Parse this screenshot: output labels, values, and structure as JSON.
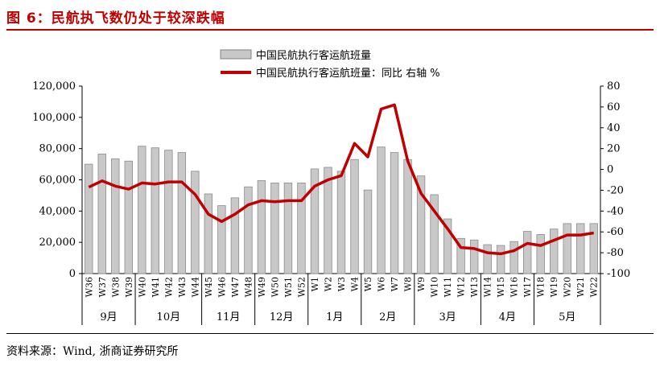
{
  "title": "图 6：民航执飞数仍处于较深跌幅",
  "source": "资料来源：Wind, 浙商证券研究所",
  "chart_data": {
    "type": "bar",
    "categories": [
      "W36",
      "W37",
      "W38",
      "W39",
      "W40",
      "W41",
      "W42",
      "W43",
      "W44",
      "W45",
      "W46",
      "W47",
      "W48",
      "W49",
      "W50",
      "W51",
      "W52",
      "W1",
      "W2",
      "W3",
      "W4",
      "W5",
      "W6",
      "W7",
      "W8",
      "W9",
      "W10",
      "W11",
      "W12",
      "W13",
      "W14",
      "W15",
      "W16",
      "W17",
      "W18",
      "W19",
      "W20",
      "W21",
      "W22"
    ],
    "months": [
      {
        "label": "9月",
        "start": 0,
        "end": 3
      },
      {
        "label": "10月",
        "start": 4,
        "end": 8
      },
      {
        "label": "11月",
        "start": 9,
        "end": 12
      },
      {
        "label": "12月",
        "start": 13,
        "end": 16
      },
      {
        "label": "1月",
        "start": 17,
        "end": 20
      },
      {
        "label": "2月",
        "start": 21,
        "end": 24
      },
      {
        "label": "3月",
        "start": 25,
        "end": 29
      },
      {
        "label": "4月",
        "start": 30,
        "end": 33
      },
      {
        "label": "5月",
        "start": 34,
        "end": 38
      }
    ],
    "series": [
      {
        "name": "中国民航执行客运航班量",
        "type": "bar",
        "axis": "left",
        "color": "#c8c8c8",
        "values": [
          70000,
          76500,
          73500,
          72000,
          81500,
          80500,
          79000,
          77500,
          65500,
          51000,
          43500,
          48500,
          55500,
          59500,
          58000,
          58000,
          58000,
          67000,
          68000,
          65500,
          73000,
          53500,
          81000,
          77500,
          73000,
          62500,
          50500,
          35000,
          22500,
          21500,
          18500,
          18000,
          20500,
          27000,
          25000,
          28500,
          32000,
          32000,
          32000
        ]
      },
      {
        "name": "中国民航执行客运航班量：同比 右轴 %",
        "type": "line",
        "axis": "right",
        "color": "#c00000",
        "values": [
          -17,
          -11,
          -16,
          -19,
          -13,
          -14,
          -12,
          -12,
          -24,
          -43,
          -50,
          -43,
          -34,
          -30,
          -31,
          -30,
          -30,
          -16,
          -10,
          -6,
          25,
          12,
          58,
          62,
          8,
          -23,
          -40,
          -57,
          -75,
          -76,
          -80,
          -81,
          -78,
          -71,
          -73,
          -68,
          -63,
          -63,
          -61
        ]
      }
    ],
    "yleft": {
      "min": 0,
      "max": 120000,
      "step": 20000,
      "ticks": [
        "0",
        "20,000",
        "40,000",
        "60,000",
        "80,000",
        "100,000",
        "120,000"
      ]
    },
    "yright": {
      "min": -100,
      "max": 80,
      "step": 20,
      "ticks": [
        "-100",
        "-80",
        "-60",
        "-40",
        "-20",
        "0",
        "20",
        "40",
        "60",
        "80"
      ]
    },
    "legend_position": "top-center",
    "grid": false
  }
}
